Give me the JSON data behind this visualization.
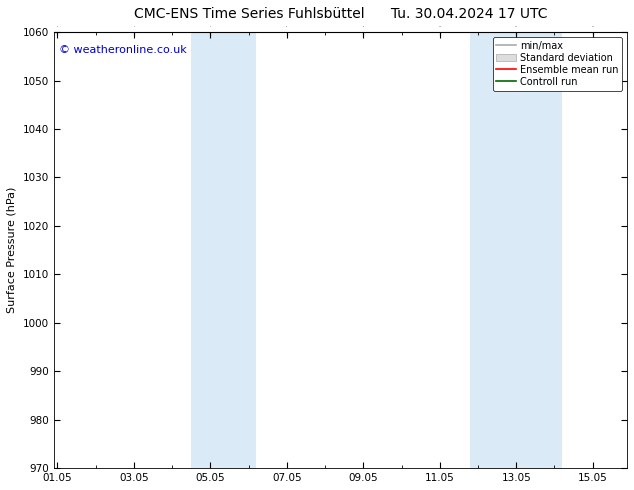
{
  "title": "CMC-ENS Time Series Fuhlsbüttel",
  "title_right": "Tu. 30.04.2024 17 UTC",
  "ylabel": "Surface Pressure (hPa)",
  "watermark": "© weatheronline.co.uk",
  "ylim": [
    970,
    1060
  ],
  "yticks": [
    970,
    980,
    990,
    1000,
    1010,
    1020,
    1030,
    1040,
    1050,
    1060
  ],
  "xtick_labels": [
    "01.05",
    "03.05",
    "05.05",
    "07.05",
    "09.05",
    "11.05",
    "13.05",
    "15.05"
  ],
  "xtick_positions": [
    0,
    2,
    4,
    6,
    8,
    10,
    12,
    14
  ],
  "xmin": -0.1,
  "xmax": 14.9,
  "shaded_bands": [
    {
      "xstart": 3.5,
      "xend": 5.2
    },
    {
      "xstart": 10.8,
      "xend": 13.2
    }
  ],
  "shaded_color": "#daeaf7",
  "background_color": "#ffffff",
  "plot_bg_color": "#ffffff",
  "legend_items": [
    {
      "label": "min/max",
      "color": "#aaaaaa",
      "type": "line"
    },
    {
      "label": "Standard deviation",
      "color": "#cccccc",
      "type": "fill"
    },
    {
      "label": "Ensemble mean run",
      "color": "#ff0000",
      "type": "line"
    },
    {
      "label": "Controll run",
      "color": "#006600",
      "type": "line"
    }
  ],
  "font_size_title": 10,
  "font_size_axis": 8,
  "font_size_tick": 7.5,
  "font_size_watermark": 8,
  "font_size_legend": 7
}
